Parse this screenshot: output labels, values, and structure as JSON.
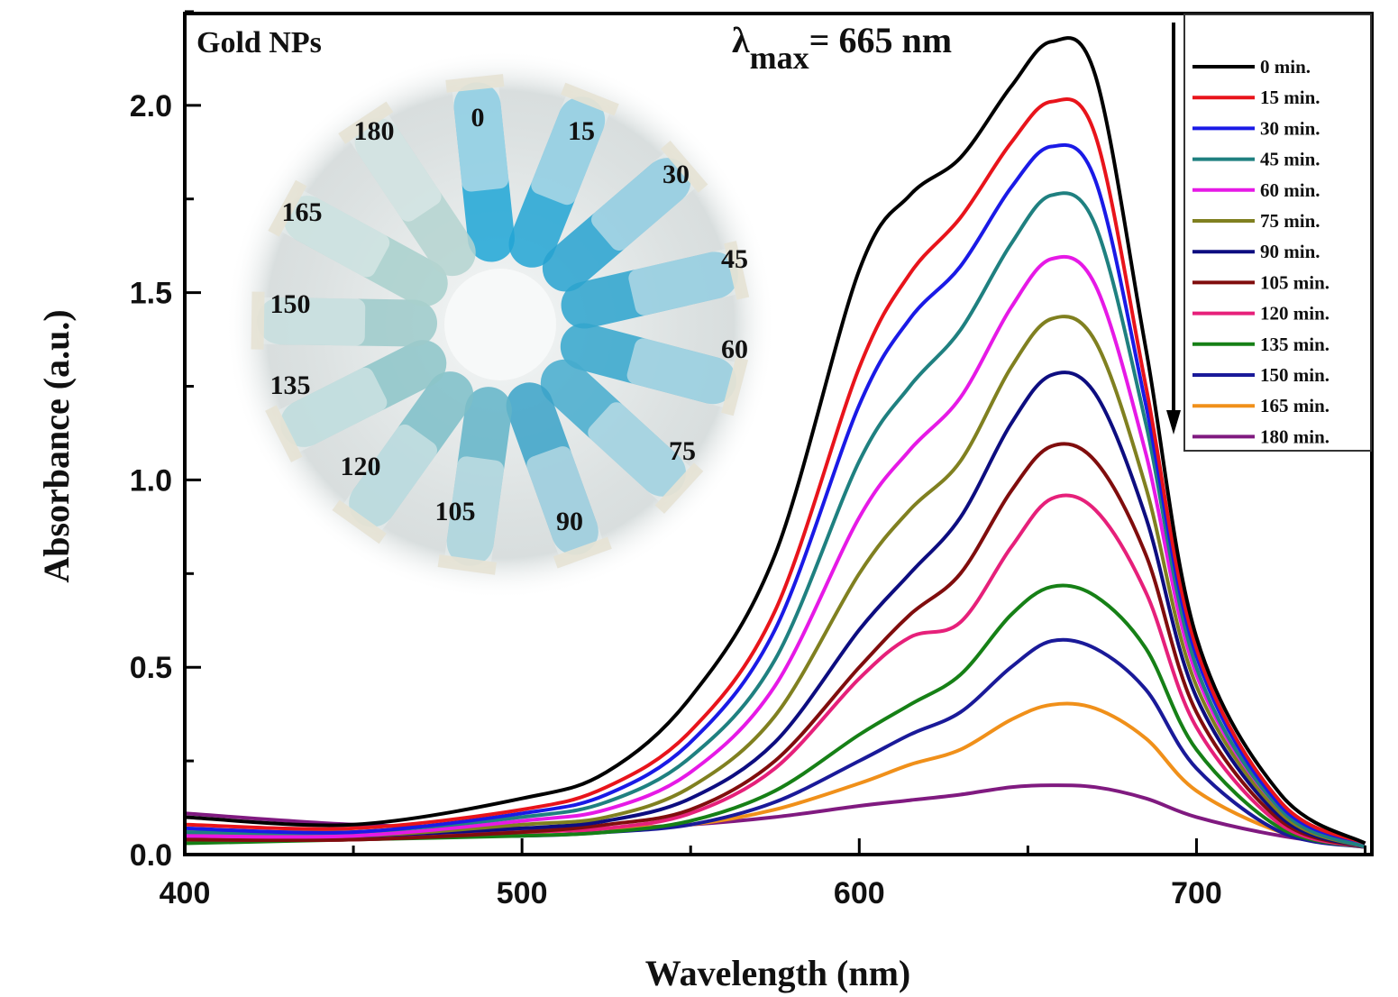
{
  "chart_data": {
    "type": "line",
    "xlabel": "Wavelength (nm)",
    "ylabel": "Absorbance (a.u.)",
    "xlim": [
      400,
      752
    ],
    "ylim": [
      0,
      2.245
    ],
    "xticks": [
      400,
      500,
      600,
      700
    ],
    "yticks": [
      0.0,
      0.5,
      1.0,
      1.5,
      2.0
    ],
    "ytick_labels": [
      "0.0",
      "0.5",
      "1.0",
      "1.5",
      "2.0"
    ],
    "grid": false,
    "legend_position": "top-right",
    "x": [
      400,
      450,
      500,
      525,
      550,
      575,
      600,
      615,
      630,
      645,
      657,
      670,
      685,
      700,
      725,
      750
    ],
    "series": [
      {
        "name": "0 min.",
        "color": "#000000",
        "values": [
          0.1,
          0.08,
          0.15,
          0.22,
          0.42,
          0.8,
          1.56,
          1.76,
          1.86,
          2.05,
          2.17,
          2.08,
          1.35,
          0.58,
          0.16,
          0.03
        ]
      },
      {
        "name": "15 min.",
        "color": "#e8141b",
        "values": [
          0.08,
          0.07,
          0.12,
          0.18,
          0.33,
          0.65,
          1.3,
          1.55,
          1.7,
          1.9,
          2.01,
          1.92,
          1.25,
          0.55,
          0.14,
          0.03
        ]
      },
      {
        "name": "30 min.",
        "color": "#1a1ae6",
        "values": [
          0.07,
          0.06,
          0.11,
          0.16,
          0.3,
          0.6,
          1.2,
          1.43,
          1.57,
          1.78,
          1.89,
          1.8,
          1.2,
          0.53,
          0.13,
          0.03
        ]
      },
      {
        "name": "45 min.",
        "color": "#1f8080",
        "values": [
          0.06,
          0.06,
          0.1,
          0.14,
          0.26,
          0.52,
          1.05,
          1.25,
          1.4,
          1.63,
          1.76,
          1.68,
          1.15,
          0.5,
          0.12,
          0.02
        ]
      },
      {
        "name": "60 min.",
        "color": "#e619e6",
        "values": [
          0.05,
          0.05,
          0.09,
          0.12,
          0.22,
          0.45,
          0.9,
          1.08,
          1.22,
          1.46,
          1.59,
          1.52,
          1.07,
          0.48,
          0.12,
          0.02
        ]
      },
      {
        "name": "75 min.",
        "color": "#808020",
        "values": [
          0.06,
          0.05,
          0.08,
          0.1,
          0.18,
          0.37,
          0.75,
          0.92,
          1.05,
          1.3,
          1.43,
          1.37,
          0.98,
          0.45,
          0.11,
          0.02
        ]
      },
      {
        "name": "90 min.",
        "color": "#0d0d80",
        "values": [
          0.05,
          0.05,
          0.07,
          0.09,
          0.15,
          0.3,
          0.6,
          0.75,
          0.9,
          1.15,
          1.28,
          1.23,
          0.9,
          0.42,
          0.1,
          0.02
        ]
      },
      {
        "name": "105 min.",
        "color": "#800d0d",
        "values": [
          0.04,
          0.04,
          0.06,
          0.08,
          0.12,
          0.25,
          0.5,
          0.64,
          0.75,
          0.97,
          1.09,
          1.05,
          0.8,
          0.38,
          0.09,
          0.02
        ]
      },
      {
        "name": "120 min.",
        "color": "#e6207a",
        "values": [
          0.04,
          0.04,
          0.06,
          0.07,
          0.11,
          0.23,
          0.47,
          0.58,
          0.62,
          0.82,
          0.95,
          0.92,
          0.7,
          0.34,
          0.08,
          0.02
        ]
      },
      {
        "name": "135 min.",
        "color": "#168016",
        "values": [
          0.03,
          0.04,
          0.05,
          0.06,
          0.09,
          0.17,
          0.32,
          0.4,
          0.48,
          0.64,
          0.715,
          0.69,
          0.55,
          0.28,
          0.07,
          0.02
        ]
      },
      {
        "name": "150 min.",
        "color": "#1a1a99",
        "values": [
          0.05,
          0.05,
          0.05,
          0.06,
          0.08,
          0.14,
          0.25,
          0.32,
          0.38,
          0.5,
          0.57,
          0.55,
          0.44,
          0.23,
          0.06,
          0.02
        ]
      },
      {
        "name": "165 min.",
        "color": "#f0901a",
        "values": [
          0.06,
          0.06,
          0.06,
          0.07,
          0.08,
          0.12,
          0.19,
          0.24,
          0.28,
          0.36,
          0.4,
          0.39,
          0.31,
          0.17,
          0.06,
          0.02
        ]
      },
      {
        "name": "180 min.",
        "color": "#801a80",
        "values": [
          0.11,
          0.08,
          0.07,
          0.07,
          0.08,
          0.1,
          0.13,
          0.145,
          0.16,
          0.18,
          0.185,
          0.18,
          0.15,
          0.1,
          0.05,
          0.02
        ]
      }
    ],
    "annotations": {
      "sample_label": "Gold NPs",
      "lambda_symbol": "λ",
      "lambda_subscript": "max",
      "lambda_value": "= 665 nm",
      "arrow_direction": "down"
    },
    "inset_photo": {
      "tube_labels": [
        "0",
        "15",
        "30",
        "45",
        "60",
        "75",
        "90",
        "105",
        "120",
        "135",
        "150",
        "165",
        "180"
      ],
      "tube_colors": [
        "#1fa6d6",
        "#22a4d4",
        "#27a2d0",
        "#2ca3ce",
        "#34a6cc",
        "#45acce",
        "#3aa2c8",
        "#62b4c8",
        "#7cbec8",
        "#8cc4c8",
        "#9ccaca",
        "#a8d0cc",
        "#b4d4d0"
      ]
    }
  }
}
